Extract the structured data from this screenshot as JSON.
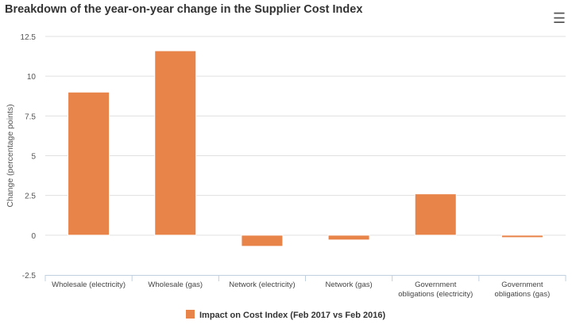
{
  "chart_data": {
    "type": "bar",
    "title": "Breakdown of the year-on-year change in the Supplier Cost Index",
    "ylabel": "Change (percentage points)",
    "xlabel": "",
    "ylim": [
      -2.5,
      12.5
    ],
    "yticks": [
      -2.5,
      0,
      2.5,
      5,
      7.5,
      10,
      12.5
    ],
    "ytick_labels": [
      "-2.5",
      "0",
      "2.5",
      "5",
      "7.5",
      "10",
      "12.5"
    ],
    "grid": true,
    "legend_position": "bottom",
    "categories": [
      [
        "Wholesale (electricity)"
      ],
      [
        "Wholesale (gas)"
      ],
      [
        "Network (electricity)"
      ],
      [
        "Network (gas)"
      ],
      [
        "Government",
        "obligations (electricity)"
      ],
      [
        "Government",
        "obligations (gas)"
      ]
    ],
    "series": [
      {
        "name": "Impact on Cost Index (Feb 2017 vs Feb 2016)",
        "color": "#e8834a",
        "values": [
          9.0,
          11.6,
          -0.7,
          -0.3,
          2.6,
          -0.15
        ]
      }
    ]
  },
  "menu_icon": "hamburger-menu-icon"
}
